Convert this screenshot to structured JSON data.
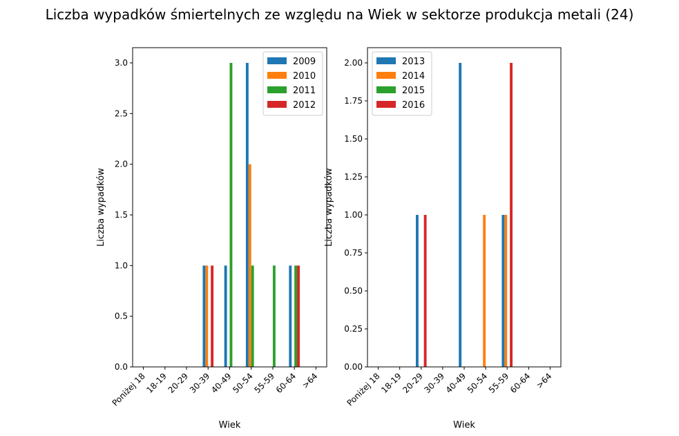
{
  "title": "Liczba wypadków śmiertelnych ze względu na Wiek w sektorze produkcja metali (24)",
  "colors": [
    "#1f77b4",
    "#ff7f0e",
    "#2ca02c",
    "#d62728"
  ],
  "chart_data": [
    {
      "type": "bar",
      "xlabel": "Wiek",
      "ylabel": "Liczba wypadków",
      "categories": [
        "Poniżej 18",
        "18-19",
        "20-29",
        "30-39",
        "40-49",
        "50-54",
        "55-59",
        "60-64",
        ">64"
      ],
      "ylim": [
        0,
        3.15
      ],
      "yticks": [
        0.0,
        0.5,
        1.0,
        1.5,
        2.0,
        2.5,
        3.0
      ],
      "ytick_labels": [
        "0.0",
        "0.5",
        "1.0",
        "1.5",
        "2.0",
        "2.5",
        "3.0"
      ],
      "legend_position": "top-right",
      "series": [
        {
          "name": "2009",
          "values": [
            0,
            0,
            0,
            1,
            1,
            3,
            0,
            1,
            0
          ]
        },
        {
          "name": "2010",
          "values": [
            0,
            0,
            0,
            1,
            0,
            2,
            0,
            0,
            0
          ]
        },
        {
          "name": "2011",
          "values": [
            0,
            0,
            0,
            0,
            3,
            1,
            1,
            1,
            0
          ]
        },
        {
          "name": "2012",
          "values": [
            0,
            0,
            0,
            1,
            0,
            0,
            0,
            1,
            0
          ]
        }
      ]
    },
    {
      "type": "bar",
      "xlabel": "Wiek",
      "ylabel": "Liczba wypadków",
      "categories": [
        "Poniżej 18",
        "18-19",
        "20-29",
        "30-39",
        "40-49",
        "50-54",
        "55-59",
        "60-64",
        ">64"
      ],
      "ylim": [
        0,
        2.1
      ],
      "yticks": [
        0.0,
        0.25,
        0.5,
        0.75,
        1.0,
        1.25,
        1.5,
        1.75,
        2.0
      ],
      "ytick_labels": [
        "0.00",
        "0.25",
        "0.50",
        "0.75",
        "1.00",
        "1.25",
        "1.50",
        "1.75",
        "2.00"
      ],
      "legend_position": "top-left",
      "series": [
        {
          "name": "2013",
          "values": [
            0,
            0,
            1,
            0,
            2,
            0,
            1,
            0,
            0
          ]
        },
        {
          "name": "2014",
          "values": [
            0,
            0,
            0,
            0,
            0,
            1,
            1,
            0,
            0
          ]
        },
        {
          "name": "2015",
          "values": [
            0,
            0,
            0,
            0,
            0,
            0,
            0,
            0,
            0
          ]
        },
        {
          "name": "2016",
          "values": [
            0,
            0,
            1,
            0,
            0,
            0,
            2,
            0,
            0
          ]
        }
      ]
    }
  ]
}
